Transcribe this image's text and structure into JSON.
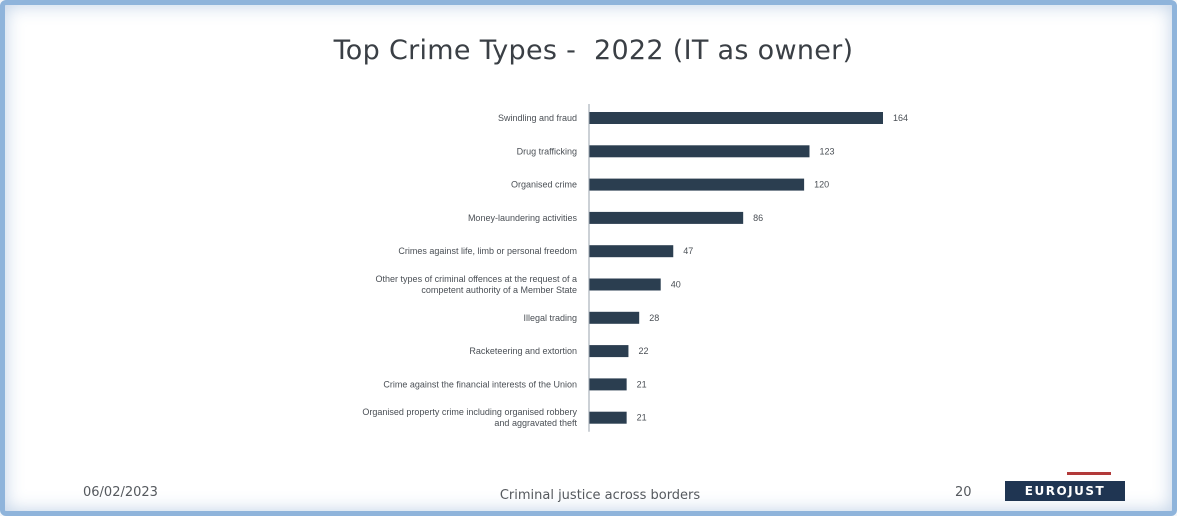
{
  "slide": {
    "title": "Top Crime Types -  2022 (IT as owner)",
    "date": "06/02/2023",
    "tagline": "Criminal justice across borders",
    "page_number": "20",
    "logo_text": "EUROJUST"
  },
  "chart_data": {
    "type": "bar",
    "orientation": "horizontal",
    "title": "Top Crime Types -  2022 (IT as owner)",
    "categories": [
      "Swindling and fraud",
      "Drug trafficking",
      "Organised crime",
      "Money-laundering activities",
      "Crimes against life, limb or personal freedom",
      "Other types of criminal offences at the request of a competent authority of a Member State",
      "Illegal trading",
      "Racketeering and extortion",
      "Crime against the financial interests of the Union",
      "Organised property crime including organised robbery and aggravated theft"
    ],
    "category_lines": [
      [
        "Swindling and fraud"
      ],
      [
        "Drug trafficking"
      ],
      [
        "Organised crime"
      ],
      [
        "Money-laundering activities"
      ],
      [
        "Crimes against life, limb or personal freedom"
      ],
      [
        "Other types of criminal offences at the request of a",
        "competent authority of a Member State"
      ],
      [
        "Illegal trading"
      ],
      [
        "Racketeering and extortion"
      ],
      [
        "Crime against the financial interests of the Union"
      ],
      [
        "Organised property crime including organised robbery",
        "and aggravated theft"
      ]
    ],
    "values": [
      164,
      123,
      120,
      86,
      47,
      40,
      28,
      22,
      21,
      21
    ],
    "xlim": [
      0,
      164
    ],
    "grid": false,
    "legend": "none",
    "colors": {
      "bar": "#2b3e50",
      "text": "#4a4f55"
    }
  }
}
